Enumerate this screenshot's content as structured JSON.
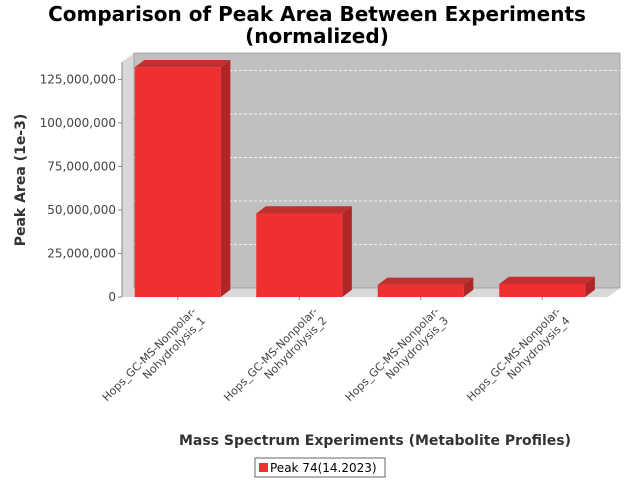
{
  "chart_data": {
    "type": "bar",
    "title_line1": "Comparison of Peak Area Between Experiments",
    "title_line2": "(normalized)",
    "xlabel": "Mass Spectrum Experiments (Metabolite Profiles)",
    "ylabel": "Peak Area (1e-3)",
    "categories": [
      [
        "Hops_GC-MS-Nonpolar-",
        "Nohydrolysis_1"
      ],
      [
        "Hops_GC-MS-Nonpolar-",
        "Nohydrolysis_2"
      ],
      [
        "Hops_GC-MS-Nonpolar-",
        "Nohydrolysis_3"
      ],
      [
        "Hops_GC-MS-Nonpolar-",
        "Nohydrolysis_4"
      ]
    ],
    "series": [
      {
        "name": "Peak 74(14.2023)",
        "values": [
          132000000,
          48000000,
          7000000,
          7500000
        ],
        "color": "#f03030"
      }
    ],
    "yticks": [
      0,
      25000000,
      50000000,
      75000000,
      100000000,
      125000000
    ],
    "ytick_labels": [
      "0",
      "25,000,000",
      "50,000,000",
      "75,000,000",
      "100,000,000",
      "125,000,000"
    ],
    "ylim": [
      0,
      135000000
    ],
    "grid": true,
    "legend_position": "bottom",
    "plot_color": "#c0c0c0",
    "wall_color": "#d8d8d8"
  }
}
